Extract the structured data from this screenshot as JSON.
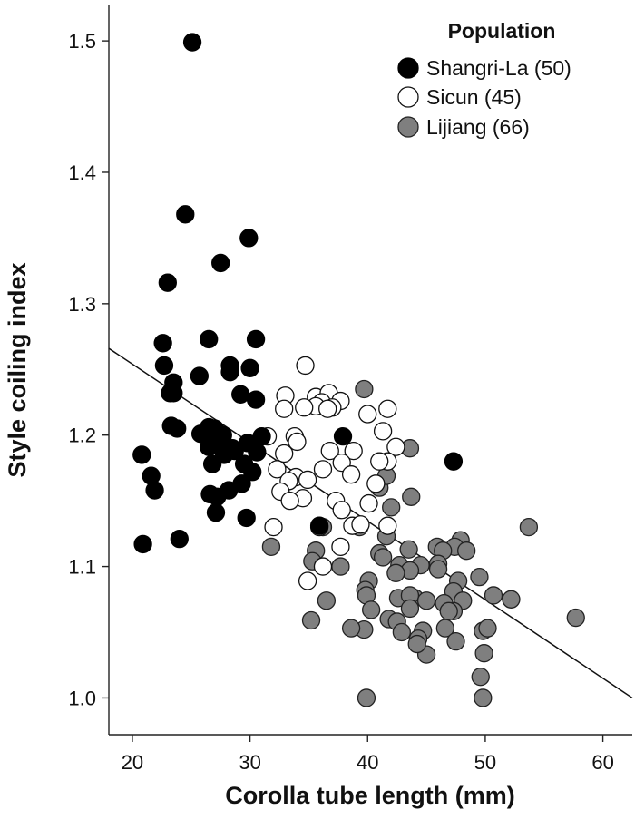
{
  "chart_data": {
    "type": "scatter",
    "xlabel": "Corolla tube length (mm)",
    "ylabel": "Style coiling index",
    "xlim": [
      18,
      62.5
    ],
    "ylim": [
      0.972,
      1.527
    ],
    "xticks": [
      20,
      30,
      40,
      50,
      60
    ],
    "xtick_labels": [
      "20",
      "30",
      "40",
      "50",
      "60"
    ],
    "yticks": [
      1.0,
      1.1,
      1.2,
      1.3,
      1.4,
      1.5
    ],
    "ytick_labels": [
      "1.0",
      "1.1",
      "1.2",
      "1.3",
      "1.4",
      "1.5"
    ],
    "legend": {
      "title": "Population",
      "placement": "top-right"
    },
    "trendline": {
      "x": [
        18,
        62.5
      ],
      "y": [
        1.266,
        1.0
      ]
    },
    "series": [
      {
        "name": "Shangri-La (50)",
        "fill": "#000000",
        "stroke": "#000000",
        "points": [
          [
            25.1,
            1.499
          ],
          [
            24.5,
            1.368
          ],
          [
            29.9,
            1.35
          ],
          [
            27.5,
            1.331
          ],
          [
            23.0,
            1.316
          ],
          [
            22.6,
            1.27
          ],
          [
            26.5,
            1.273
          ],
          [
            30.5,
            1.273
          ],
          [
            22.7,
            1.253
          ],
          [
            28.3,
            1.253
          ],
          [
            28.3,
            1.248
          ],
          [
            30.0,
            1.251
          ],
          [
            25.7,
            1.245
          ],
          [
            23.5,
            1.24
          ],
          [
            23.2,
            1.232
          ],
          [
            23.5,
            1.232
          ],
          [
            29.2,
            1.231
          ],
          [
            30.5,
            1.227
          ],
          [
            23.3,
            1.207
          ],
          [
            23.8,
            1.205
          ],
          [
            26.5,
            1.206
          ],
          [
            27.0,
            1.205
          ],
          [
            25.8,
            1.201
          ],
          [
            26.8,
            1.2
          ],
          [
            27.7,
            1.2
          ],
          [
            31.0,
            1.199
          ],
          [
            26.5,
            1.191
          ],
          [
            27.8,
            1.193
          ],
          [
            28.5,
            1.19
          ],
          [
            29.8,
            1.194
          ],
          [
            30.6,
            1.187
          ],
          [
            28.7,
            1.188
          ],
          [
            26.8,
            1.178
          ],
          [
            27.8,
            1.185
          ],
          [
            20.8,
            1.185
          ],
          [
            29.5,
            1.178
          ],
          [
            30.2,
            1.172
          ],
          [
            21.6,
            1.169
          ],
          [
            29.3,
            1.163
          ],
          [
            28.2,
            1.158
          ],
          [
            21.9,
            1.158
          ],
          [
            26.6,
            1.155
          ],
          [
            27.2,
            1.153
          ],
          [
            27.1,
            1.141
          ],
          [
            29.7,
            1.137
          ],
          [
            35.9,
            1.131
          ],
          [
            24.0,
            1.121
          ],
          [
            20.9,
            1.117
          ],
          [
            37.9,
            1.199
          ],
          [
            47.3,
            1.18
          ]
        ]
      },
      {
        "name": "Sicun (45)",
        "fill": "#ffffff",
        "stroke": "#111111",
        "points": [
          [
            34.7,
            1.253
          ],
          [
            33.0,
            1.23
          ],
          [
            35.6,
            1.229
          ],
          [
            36.7,
            1.232
          ],
          [
            37.7,
            1.226
          ],
          [
            36.1,
            1.225
          ],
          [
            35.6,
            1.222
          ],
          [
            34.6,
            1.221
          ],
          [
            32.9,
            1.22
          ],
          [
            37.0,
            1.221
          ],
          [
            41.7,
            1.22
          ],
          [
            40.0,
            1.216
          ],
          [
            36.6,
            1.22
          ],
          [
            31.5,
            1.199
          ],
          [
            33.8,
            1.199
          ],
          [
            41.3,
            1.203
          ],
          [
            42.4,
            1.191
          ],
          [
            34.0,
            1.195
          ],
          [
            38.8,
            1.188
          ],
          [
            36.8,
            1.188
          ],
          [
            32.9,
            1.186
          ],
          [
            41.7,
            1.18
          ],
          [
            37.8,
            1.179
          ],
          [
            32.3,
            1.174
          ],
          [
            38.6,
            1.17
          ],
          [
            36.2,
            1.174
          ],
          [
            33.9,
            1.168
          ],
          [
            34.9,
            1.166
          ],
          [
            33.3,
            1.165
          ],
          [
            40.7,
            1.163
          ],
          [
            32.6,
            1.157
          ],
          [
            34.5,
            1.152
          ],
          [
            37.3,
            1.15
          ],
          [
            33.4,
            1.15
          ],
          [
            40.1,
            1.148
          ],
          [
            37.8,
            1.143
          ],
          [
            38.7,
            1.131
          ],
          [
            39.4,
            1.132
          ],
          [
            41.7,
            1.131
          ],
          [
            32.0,
            1.13
          ],
          [
            37.7,
            1.115
          ],
          [
            36.2,
            1.1
          ],
          [
            34.9,
            1.089
          ],
          [
            35.9,
            1.13
          ],
          [
            41.0,
            1.18
          ]
        ]
      },
      {
        "name": "Lijiang (66)",
        "fill": "#7f7f7f",
        "stroke": "#222222",
        "points": [
          [
            39.7,
            1.235
          ],
          [
            43.6,
            1.19
          ],
          [
            41.0,
            1.16
          ],
          [
            41.6,
            1.169
          ],
          [
            43.7,
            1.153
          ],
          [
            42.0,
            1.145
          ],
          [
            36.2,
            1.13
          ],
          [
            39.3,
            1.13
          ],
          [
            53.7,
            1.13
          ],
          [
            41.6,
            1.123
          ],
          [
            47.9,
            1.12
          ],
          [
            47.4,
            1.115
          ],
          [
            45.9,
            1.115
          ],
          [
            48.4,
            1.112
          ],
          [
            35.6,
            1.112
          ],
          [
            31.8,
            1.115
          ],
          [
            43.5,
            1.113
          ],
          [
            46.4,
            1.112
          ],
          [
            41.0,
            1.11
          ],
          [
            41.3,
            1.107
          ],
          [
            44.5,
            1.101
          ],
          [
            46.0,
            1.102
          ],
          [
            37.7,
            1.1
          ],
          [
            42.7,
            1.101
          ],
          [
            35.3,
            1.104
          ],
          [
            43.6,
            1.097
          ],
          [
            46.0,
            1.098
          ],
          [
            42.4,
            1.095
          ],
          [
            49.5,
            1.092
          ],
          [
            40.1,
            1.089
          ],
          [
            47.7,
            1.089
          ],
          [
            39.8,
            1.082
          ],
          [
            47.3,
            1.081
          ],
          [
            39.9,
            1.078
          ],
          [
            42.6,
            1.076
          ],
          [
            44.0,
            1.076
          ],
          [
            43.6,
            1.078
          ],
          [
            45.0,
            1.074
          ],
          [
            36.5,
            1.074
          ],
          [
            46.5,
            1.072
          ],
          [
            48.1,
            1.074
          ],
          [
            50.7,
            1.078
          ],
          [
            52.2,
            1.075
          ],
          [
            43.6,
            1.068
          ],
          [
            47.3,
            1.066
          ],
          [
            41.8,
            1.06
          ],
          [
            40.3,
            1.067
          ],
          [
            35.2,
            1.059
          ],
          [
            42.5,
            1.058
          ],
          [
            57.7,
            1.061
          ],
          [
            39.7,
            1.052
          ],
          [
            42.9,
            1.05
          ],
          [
            44.7,
            1.051
          ],
          [
            46.6,
            1.053
          ],
          [
            38.6,
            1.053
          ],
          [
            49.8,
            1.051
          ],
          [
            50.2,
            1.053
          ],
          [
            44.3,
            1.045
          ],
          [
            45.0,
            1.033
          ],
          [
            44.2,
            1.041
          ],
          [
            47.5,
            1.043
          ],
          [
            49.9,
            1.034
          ],
          [
            49.6,
            1.016
          ],
          [
            39.9,
            1.0
          ],
          [
            49.8,
            1.0
          ],
          [
            46.9,
            1.066
          ]
        ]
      }
    ]
  }
}
